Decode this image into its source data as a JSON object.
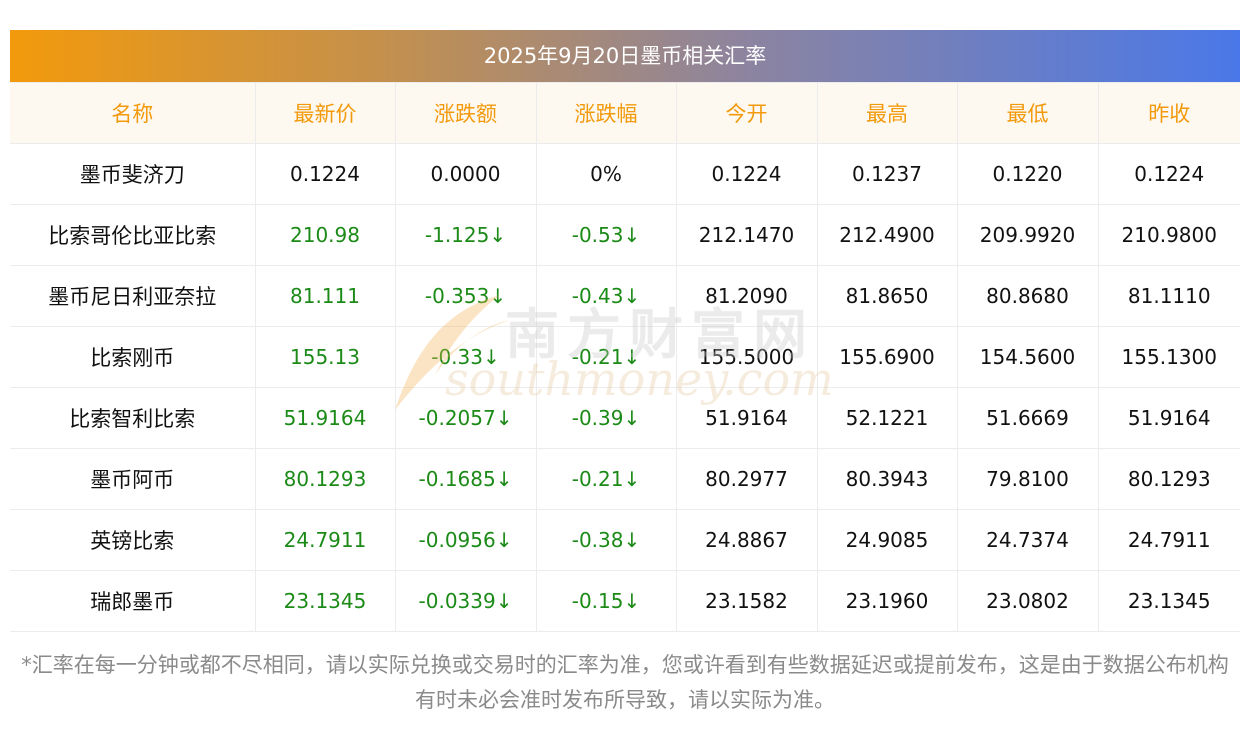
{
  "title": "2025年9月20日墨币相关汇率",
  "headers": [
    "名称",
    "最新价",
    "涨跌额",
    "涨跌幅",
    "今开",
    "最高",
    "最低",
    "昨收"
  ],
  "rows": [
    {
      "name": "墨币斐济刀",
      "latest": "0.1224",
      "change": "0.0000",
      "pct": "0%",
      "open": "0.1224",
      "high": "0.1237",
      "low": "0.1220",
      "prev": "0.1224",
      "trend": "flat"
    },
    {
      "name": "比索哥伦比亚比索",
      "latest": "210.98",
      "change": "-1.125↓",
      "pct": "-0.53↓",
      "open": "212.1470",
      "high": "212.4900",
      "low": "209.9920",
      "prev": "210.9800",
      "trend": "down"
    },
    {
      "name": "墨币尼日利亚奈拉",
      "latest": "81.111",
      "change": "-0.353↓",
      "pct": "-0.43↓",
      "open": "81.2090",
      "high": "81.8650",
      "low": "80.8680",
      "prev": "81.1110",
      "trend": "down"
    },
    {
      "name": "比索刚币",
      "latest": "155.13",
      "change": "-0.33↓",
      "pct": "-0.21↓",
      "open": "155.5000",
      "high": "155.6900",
      "low": "154.5600",
      "prev": "155.1300",
      "trend": "down"
    },
    {
      "name": "比索智利比索",
      "latest": "51.9164",
      "change": "-0.2057↓",
      "pct": "-0.39↓",
      "open": "51.9164",
      "high": "52.1221",
      "low": "51.6669",
      "prev": "51.9164",
      "trend": "down"
    },
    {
      "name": "墨币阿币",
      "latest": "80.1293",
      "change": "-0.1685↓",
      "pct": "-0.21↓",
      "open": "80.2977",
      "high": "80.3943",
      "low": "79.8100",
      "prev": "80.1293",
      "trend": "down"
    },
    {
      "name": "英镑比索",
      "latest": "24.7911",
      "change": "-0.0956↓",
      "pct": "-0.38↓",
      "open": "24.8867",
      "high": "24.9085",
      "low": "24.7374",
      "prev": "24.7911",
      "trend": "down"
    },
    {
      "name": "瑞郎墨币",
      "latest": "23.1345",
      "change": "-0.0339↓",
      "pct": "-0.15↓",
      "open": "23.1582",
      "high": "23.1960",
      "low": "23.0802",
      "prev": "23.1345",
      "trend": "down"
    }
  ],
  "watermark": {
    "cn": "南方财富网",
    "en": "southmoney.com"
  },
  "footnote": "*汇率在每一分钟或都不尽相同，请以实际兑换或交易时的汇率为准，您或许看到有些数据延迟或提前发布，这是由于数据公布机构有时未必会准时发布所导致，请以实际为准。",
  "colors": {
    "header_text": "#f39a0c",
    "down": "#1b8a17",
    "gradient_start": "#f39a0c",
    "gradient_end": "#4a78e8"
  }
}
